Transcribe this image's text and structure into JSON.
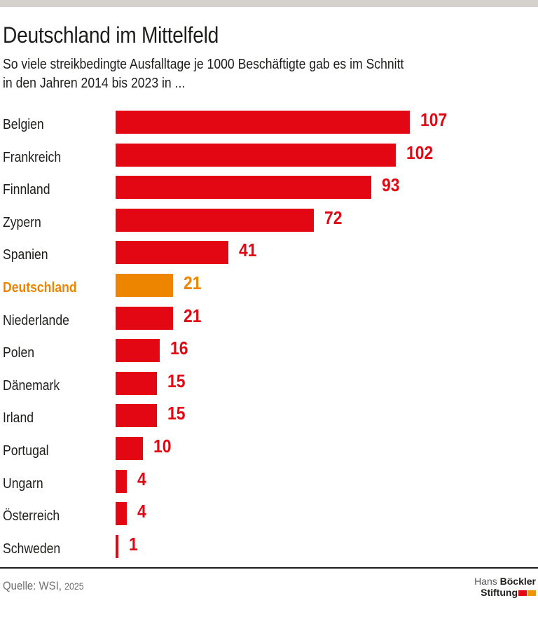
{
  "chart_data": {
    "type": "bar",
    "orientation": "horizontal",
    "title": "Deutschland im Mittelfeld",
    "subtitle_line1": "So viele streikbedingte Ausfalltage je 1000 Beschäftigte gab es im Schnitt",
    "subtitle_line2": "in den Jahren 2014 bis 2023 in ...",
    "categories": [
      "Belgien",
      "Frankreich",
      "Finnland",
      "Zypern",
      "Spanien",
      "Deutschland",
      "Niederlande",
      "Polen",
      "Dänemark",
      "Irland",
      "Portugal",
      "Ungarn",
      "Österreich",
      "Schweden"
    ],
    "values": [
      107,
      102,
      93,
      72,
      41,
      21,
      21,
      16,
      15,
      15,
      10,
      4,
      4,
      1
    ],
    "highlight_category": "Deutschland",
    "xlim": [
      0,
      107
    ],
    "xlabel": "",
    "ylabel": "",
    "grid": false,
    "legend": false,
    "bar_color": "#e30613",
    "highlight_color": "#ee8500",
    "value_label_color": "#e30613",
    "highlight_value_label_color": "#ee8500"
  },
  "footer": {
    "source_prefix": "Quelle: WSI,",
    "source_year": "2025",
    "logo": {
      "line1_regular": "Hans",
      "line1_bold": "Böckler",
      "line2_bold": "Stiftung",
      "square_colors": [
        "#e30613",
        "#f29400"
      ]
    }
  },
  "colors": {
    "top_strip": "#d5d2cd",
    "text": "#1d1d1b",
    "source_text": "#6f6f6e",
    "logo_gray": "#575756",
    "divider": "#1d1d1b"
  }
}
